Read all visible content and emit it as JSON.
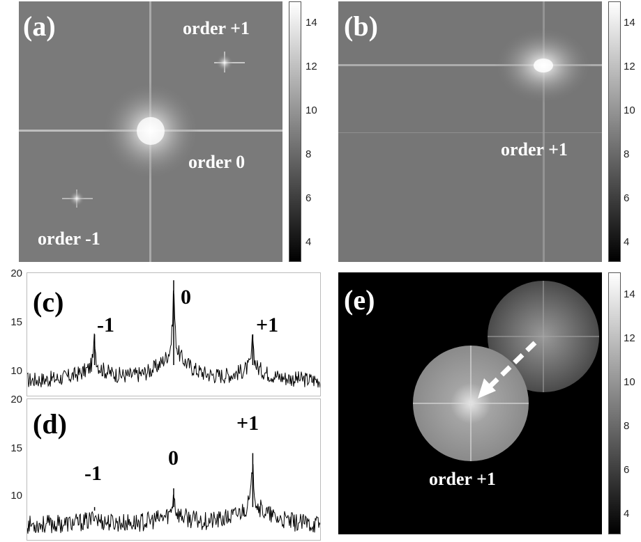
{
  "panels": {
    "a": {
      "label": "(a)",
      "ann_plus1": "order +1",
      "ann_0": "order 0",
      "ann_minus1": "order -1"
    },
    "b": {
      "label": "(b)",
      "ann_plus1": "order +1"
    },
    "c": {
      "label": "(c)",
      "peak_minus1": "-1",
      "peak_0": "0",
      "peak_plus1": "+1"
    },
    "d": {
      "label": "(d)",
      "peak_minus1": "-1",
      "peak_0": "0",
      "peak_plus1": "+1"
    },
    "e": {
      "label": "(e)",
      "ann_plus1": "order +1"
    }
  },
  "colorbar_ticks": [
    "14",
    "12",
    "10",
    "8",
    "6",
    "4"
  ],
  "chart_data": [
    {
      "type": "line",
      "panel": "(c)",
      "ylim": [
        8,
        20
      ],
      "yticks": [
        "20",
        "15",
        "10"
      ],
      "peaks": [
        {
          "label": "-1",
          "x_fraction": 0.23,
          "value": 14
        },
        {
          "label": "0",
          "x_fraction": 0.5,
          "value": 19.3
        },
        {
          "label": "+1",
          "x_fraction": 0.77,
          "value": 14
        }
      ],
      "baseline": 9.5
    },
    {
      "type": "line",
      "panel": "(d)",
      "ylim": [
        8,
        20
      ],
      "yticks": [
        "20",
        "15",
        "10"
      ],
      "peaks": [
        {
          "label": "-1",
          "x_fraction": 0.23,
          "value": 10.5
        },
        {
          "label": "0",
          "x_fraction": 0.5,
          "value": 12.4
        },
        {
          "label": "+1",
          "x_fraction": 0.77,
          "value": 15.4
        }
      ],
      "baseline": 9.3
    }
  ],
  "colors": {
    "panel_bg": "#7a7a7a",
    "dark_bg": "#000000",
    "text_white": "#ffffff"
  }
}
